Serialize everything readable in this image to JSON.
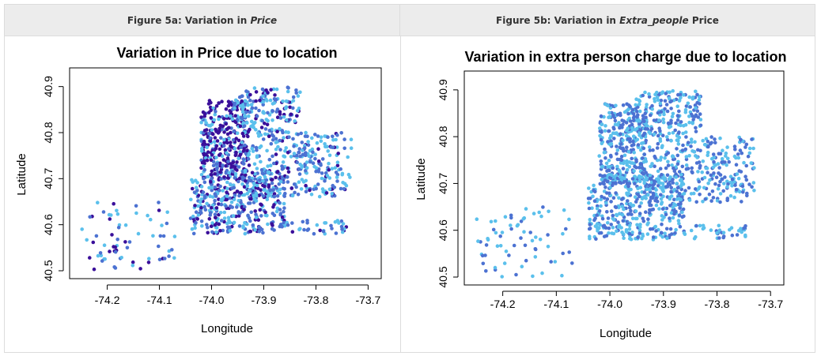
{
  "headers": {
    "left_prefix": "Figure 5a: Variation in ",
    "left_em": "Price",
    "left_suffix": "",
    "right_prefix": "Figure 5b: Variation in ",
    "right_em": "Extra_people",
    "right_suffix": " Price"
  },
  "colors": {
    "dark": "#3a0f9a",
    "mid": "#4c72d2",
    "light": "#5bc0ec",
    "header_bg": "#ececec"
  },
  "chart_data": [
    {
      "type": "scatter",
      "title": "Variation in Price due to location",
      "xlabel": "Longitude",
      "ylabel": "Latitude",
      "xlim": [
        -74.26,
        -73.69
      ],
      "ylim": [
        40.5,
        40.92
      ],
      "xticks": [
        "-74.2",
        "-74.1",
        "-74.0",
        "-73.9",
        "-73.8",
        "-73.7"
      ],
      "yticks": [
        "40.5",
        "40.6",
        "40.7",
        "40.8",
        "40.9"
      ],
      "grid": false,
      "palette": [
        "dark",
        "mid",
        "light"
      ],
      "mix": [
        0.3,
        0.35,
        0.35
      ],
      "regions": [
        {
          "x": [
            -74.02,
            -73.93
          ],
          "y": [
            40.7,
            40.87
          ],
          "n": 320,
          "dark": 0.55
        },
        {
          "x": [
            -73.96,
            -73.83
          ],
          "y": [
            40.8,
            40.9
          ],
          "n": 180,
          "dark": 0.2
        },
        {
          "x": [
            -74.04,
            -73.86
          ],
          "y": [
            40.58,
            40.72
          ],
          "n": 420,
          "dark": 0.3
        },
        {
          "x": [
            -73.94,
            -73.73
          ],
          "y": [
            40.66,
            40.8
          ],
          "n": 320,
          "dark": 0.15
        },
        {
          "x": [
            -74.25,
            -74.07
          ],
          "y": [
            40.5,
            40.65
          ],
          "n": 70,
          "dark": 0.15
        },
        {
          "x": [
            -73.89,
            -73.74
          ],
          "y": [
            40.58,
            40.61
          ],
          "n": 40,
          "dark": 0.2
        }
      ]
    },
    {
      "type": "scatter",
      "title": "Variation in extra person charge due to location",
      "xlabel": "Longitude",
      "ylabel": "Latitude",
      "xlim": [
        -74.26,
        -73.69
      ],
      "ylim": [
        40.5,
        40.92
      ],
      "xticks": [
        "-74.2",
        "-74.1",
        "-74.0",
        "-73.9",
        "-73.8",
        "-73.7"
      ],
      "yticks": [
        "40.5",
        "40.6",
        "40.7",
        "40.8",
        "40.9"
      ],
      "grid": false,
      "palette": [
        "mid",
        "light"
      ],
      "mix": [
        0.3,
        0.7
      ],
      "regions": [
        {
          "x": [
            -74.02,
            -73.93
          ],
          "y": [
            40.7,
            40.87
          ],
          "n": 320,
          "dark": 0
        },
        {
          "x": [
            -73.96,
            -73.83
          ],
          "y": [
            40.8,
            40.9
          ],
          "n": 180,
          "dark": 0
        },
        {
          "x": [
            -74.04,
            -73.86
          ],
          "y": [
            40.58,
            40.72
          ],
          "n": 420,
          "dark": 0
        },
        {
          "x": [
            -73.94,
            -73.73
          ],
          "y": [
            40.66,
            40.8
          ],
          "n": 320,
          "dark": 0
        },
        {
          "x": [
            -74.25,
            -74.07
          ],
          "y": [
            40.5,
            40.65
          ],
          "n": 70,
          "dark": 0
        },
        {
          "x": [
            -73.89,
            -73.74
          ],
          "y": [
            40.58,
            40.61
          ],
          "n": 40,
          "dark": 0
        }
      ]
    }
  ]
}
